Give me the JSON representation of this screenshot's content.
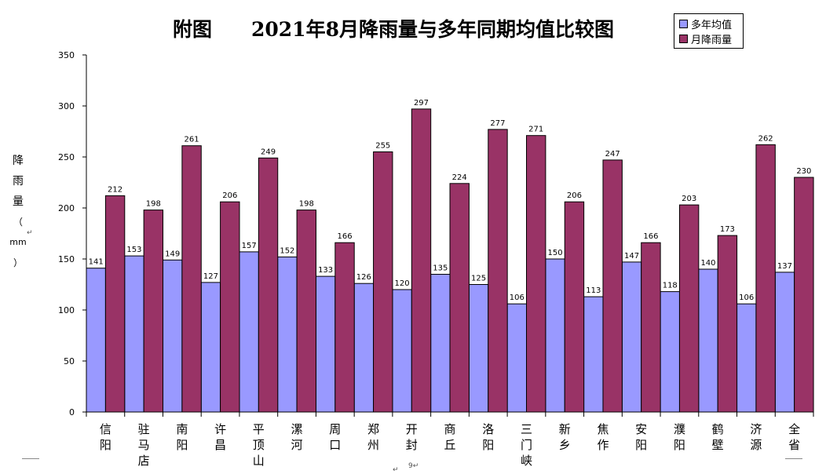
{
  "chart_data": {
    "type": "bar",
    "title": "附图　　2021年8月降雨量与多年同期均值比较图",
    "ylabel": "降雨量（mm）",
    "ylim": [
      0,
      350
    ],
    "yticks": [
      0,
      50,
      100,
      150,
      200,
      250,
      300,
      350
    ],
    "legend_position": "top-right",
    "categories": [
      "信阳",
      "驻马店",
      "南阳",
      "许昌",
      "平顶山",
      "漯河",
      "周口",
      "郑州",
      "开封",
      "商丘",
      "洛阳",
      "三门峡",
      "新乡",
      "焦作",
      "安阳",
      "濮阳",
      "鹤壁",
      "济源",
      "全省"
    ],
    "series": [
      {
        "name": "多年均值",
        "color": "#9999ff",
        "values": [
          141,
          153,
          149,
          127,
          157,
          152,
          133,
          126,
          120,
          135,
          125,
          106,
          150,
          113,
          147,
          118,
          140,
          106,
          137
        ]
      },
      {
        "name": "月降雨量",
        "color": "#993366",
        "values": [
          212,
          198,
          261,
          206,
          249,
          198,
          166,
          255,
          297,
          224,
          277,
          271,
          206,
          247,
          166,
          203,
          173,
          262,
          230
        ]
      }
    ]
  },
  "ylabel_chars": [
    "降",
    "雨",
    "量",
    "（",
    "mm",
    "）"
  ],
  "stray_marks": [
    "↵",
    "↵",
    "9↵"
  ]
}
